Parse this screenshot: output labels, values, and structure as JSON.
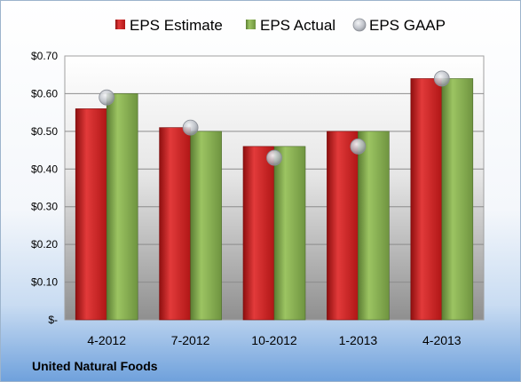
{
  "chart_data": {
    "type": "bar",
    "company": "United Natural Foods",
    "categories": [
      "4-2012",
      "7-2012",
      "10-2012",
      "1-2013",
      "4-2013"
    ],
    "series": [
      {
        "name": "EPS Estimate",
        "kind": "bar",
        "color": "#cc1c1c",
        "values": [
          0.56,
          0.51,
          0.46,
          0.5,
          0.64
        ]
      },
      {
        "name": "EPS Actual",
        "kind": "bar",
        "color": "#7fa84a",
        "values": [
          0.6,
          0.5,
          0.46,
          0.5,
          0.64
        ]
      },
      {
        "name": "EPS GAAP",
        "kind": "marker",
        "color": "#b8bcc4",
        "values": [
          0.59,
          0.51,
          0.43,
          0.46,
          0.64
        ]
      }
    ],
    "y_ticks": [
      0,
      0.1,
      0.2,
      0.3,
      0.4,
      0.5,
      0.6,
      0.7
    ],
    "y_tick_labels": [
      "$-",
      "$0.10",
      "$0.20",
      "$0.30",
      "$0.40",
      "$0.50",
      "$0.60",
      "$0.70"
    ],
    "ylim": [
      0,
      0.7
    ],
    "grid": true,
    "legend_position": "top"
  }
}
